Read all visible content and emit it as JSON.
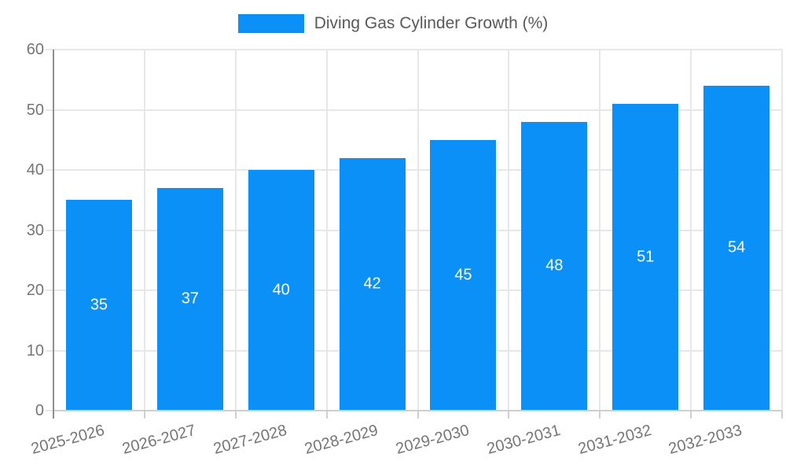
{
  "chart_data": {
    "type": "bar",
    "title": "Diving Gas Cylinder Growth (%)",
    "legend": {
      "position": "top",
      "entries": [
        "Diving Gas Cylinder Growth (%)"
      ]
    },
    "categories": [
      "2025-2026",
      "2026-2027",
      "2027-2028",
      "2028-2029",
      "2029-2030",
      "2030-2031",
      "2031-2032",
      "2032-2033"
    ],
    "series": [
      {
        "name": "Diving Gas Cylinder Growth (%)",
        "values": [
          35,
          37,
          40,
          42,
          45,
          48,
          51,
          54
        ]
      }
    ],
    "bar_value_labels": [
      "35",
      "37",
      "40",
      "42",
      "45",
      "48",
      "51",
      "54"
    ],
    "xlabel": "",
    "ylabel": "",
    "y_ticks": [
      0,
      10,
      20,
      30,
      40,
      50,
      60
    ],
    "ylim": [
      0,
      60
    ],
    "grid": "on",
    "x_label_rotation_deg": 15,
    "colors": {
      "bar": "#0b90f8",
      "bar_label": "#ffffff",
      "grid_line": "#e7e7e7",
      "y_axis_line": "#8f8f8f",
      "x_axis_line": "#cfcfcf",
      "tick_label": "#757575",
      "legend_text": "#595959",
      "background": "#ffffff"
    }
  }
}
